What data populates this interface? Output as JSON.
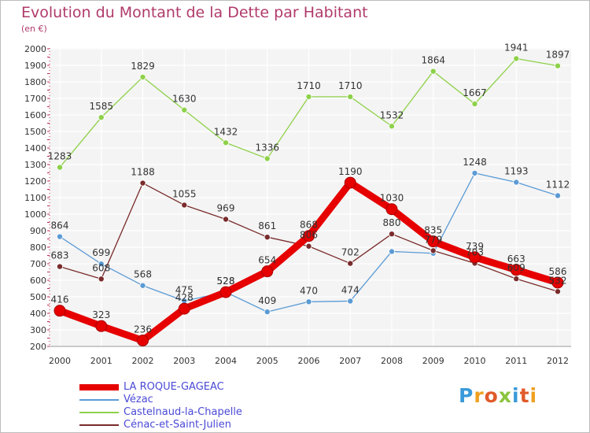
{
  "header": {
    "title": "Evolution du Montant de la Dette par Habitant",
    "subtitle": "(en €)"
  },
  "logo": {
    "text": "Proxiti",
    "letters": [
      {
        "ch": "P",
        "color": "#3a9ad9"
      },
      {
        "ch": "r",
        "color": "#f0a020"
      },
      {
        "ch": "o",
        "color": "#e05a2a"
      },
      {
        "ch": "x",
        "color": "#8ac43f"
      },
      {
        "ch": "i",
        "color": "#3a9ad9"
      },
      {
        "ch": "t",
        "color": "#e05a2a"
      },
      {
        "ch": "i",
        "color": "#f0a020"
      }
    ]
  },
  "chart_data": {
    "type": "line",
    "title": "Evolution du Montant de la Dette par Habitant",
    "subtitle": "(en €)",
    "xlabel": "",
    "ylabel": "",
    "categories": [
      "2000",
      "2001",
      "2002",
      "2003",
      "2004",
      "2005",
      "2006",
      "2007",
      "2008",
      "2009",
      "2010",
      "2011",
      "2012"
    ],
    "ylim": [
      200,
      2000
    ],
    "yticks": [
      200,
      300,
      400,
      500,
      600,
      700,
      800,
      900,
      1000,
      1100,
      1200,
      1300,
      1400,
      1500,
      1600,
      1700,
      1800,
      1900,
      2000
    ],
    "grid": true,
    "legend": "bottom-left",
    "series": [
      {
        "name": "Vézac",
        "color": "#5b9bd5",
        "thick": false,
        "values": [
          864,
          699,
          568,
          475,
          528,
          409,
          470,
          474,
          774,
          763,
          1248,
          1193,
          1112
        ],
        "labels": [
          "864",
          "699",
          "568",
          "475",
          "528",
          "409",
          "470",
          "474",
          "",
          "",
          "1248",
          "1193",
          "1112"
        ]
      },
      {
        "name": "Castelnaud-la-Chapelle",
        "color": "#8ed14a",
        "thick": false,
        "values": [
          1283,
          1585,
          1829,
          1630,
          1432,
          1336,
          1710,
          1710,
          1532,
          1864,
          1667,
          1941,
          1897
        ],
        "labels": [
          "1283",
          "1585",
          "1829",
          "1630",
          "1432",
          "1336",
          "1710",
          "1710",
          "1532",
          "1864",
          "1667",
          "1941",
          "1897"
        ]
      },
      {
        "name": "Cénac-et-Saint-Julien",
        "color": "#7a2c2c",
        "thick": false,
        "values": [
          683,
          608,
          1188,
          1055,
          969,
          861,
          806,
          702,
          880,
          779,
          703,
          609,
          532
        ],
        "labels": [
          "683",
          "608",
          "1188",
          "1055",
          "969",
          "861",
          "806",
          "702",
          "880",
          "779",
          "703",
          "609",
          "532"
        ]
      },
      {
        "name": "LA ROQUE-GAGEAC",
        "color": "#e60000",
        "thick": true,
        "values": [
          416,
          323,
          236,
          428,
          528,
          654,
          868,
          1190,
          1030,
          835,
          739,
          663,
          586
        ],
        "labels": [
          "416",
          "323",
          "236",
          "428",
          "528",
          "654",
          "868",
          "1190",
          "1030",
          "835",
          "739",
          "663",
          "586"
        ]
      }
    ]
  },
  "legend": {
    "items": [
      {
        "name": "LA ROQUE-GAGEAC",
        "color": "#e60000",
        "thickness": 8
      },
      {
        "name": "Vézac",
        "color": "#5b9bd5",
        "thickness": 2
      },
      {
        "name": "Castelnaud-la-Chapelle",
        "color": "#8ed14a",
        "thickness": 2
      },
      {
        "name": "Cénac-et-Saint-Julien",
        "color": "#7a2c2c",
        "thickness": 2
      }
    ]
  }
}
